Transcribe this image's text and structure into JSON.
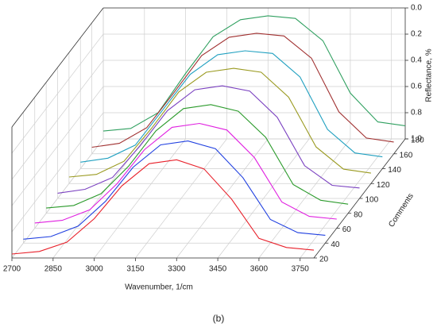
{
  "chart_data": {
    "type": "waterfall",
    "x_label": "Wavenumber, 1/cm",
    "y_label": "Reflectance, %",
    "z_label": "Comments",
    "caption": "(b)",
    "x": [
      2700,
      2800,
      2900,
      3000,
      3100,
      3200,
      3300,
      3400,
      3500,
      3600,
      3700,
      3800
    ],
    "xlim": [
      2700,
      3800
    ],
    "xticks": [
      2700,
      2850,
      3000,
      3150,
      3300,
      3450,
      3600,
      3750
    ],
    "ylim": [
      1.0,
      0.0
    ],
    "yticks": [
      {
        "value": 0,
        "label": "0.0"
      },
      0.2,
      0.4,
      0.6,
      0.8,
      {
        "value": 1,
        "label": "1.0"
      }
    ],
    "zlim": [
      20,
      180
    ],
    "zticks": [
      20,
      40,
      60,
      80,
      100,
      120,
      140,
      160,
      180
    ],
    "grid": true,
    "series": [
      {
        "z": 20,
        "color": "#e8202a",
        "values": [
          0.97,
          0.95,
          0.88,
          0.7,
          0.45,
          0.28,
          0.25,
          0.32,
          0.55,
          0.85,
          0.92,
          0.94
        ]
      },
      {
        "z": 40,
        "color": "#1f3fe0",
        "values": [
          0.97,
          0.95,
          0.87,
          0.68,
          0.42,
          0.25,
          0.22,
          0.28,
          0.5,
          0.82,
          0.92,
          0.94
        ]
      },
      {
        "z": 60,
        "color": "#e020e0",
        "values": [
          0.96,
          0.94,
          0.86,
          0.66,
          0.4,
          0.23,
          0.2,
          0.25,
          0.46,
          0.8,
          0.91,
          0.93
        ]
      },
      {
        "z": 80,
        "color": "#2a9a2a",
        "values": [
          0.96,
          0.94,
          0.85,
          0.64,
          0.37,
          0.2,
          0.17,
          0.22,
          0.42,
          0.78,
          0.9,
          0.93
        ]
      },
      {
        "z": 100,
        "color": "#7a40c0",
        "values": [
          0.96,
          0.93,
          0.84,
          0.6,
          0.33,
          0.17,
          0.14,
          0.18,
          0.38,
          0.75,
          0.9,
          0.92
        ]
      },
      {
        "z": 120,
        "color": "#9a9a20",
        "values": [
          0.95,
          0.93,
          0.83,
          0.58,
          0.3,
          0.15,
          0.12,
          0.15,
          0.34,
          0.72,
          0.89,
          0.92
        ]
      },
      {
        "z": 140,
        "color": "#20a0c0",
        "values": [
          0.95,
          0.92,
          0.82,
          0.55,
          0.28,
          0.13,
          0.1,
          0.12,
          0.3,
          0.7,
          0.88,
          0.91
        ]
      },
      {
        "z": 160,
        "color": "#a03030",
        "values": [
          0.95,
          0.92,
          0.8,
          0.53,
          0.25,
          0.11,
          0.08,
          0.1,
          0.27,
          0.68,
          0.88,
          0.91
        ]
      },
      {
        "z": 180,
        "color": "#30a060",
        "values": [
          0.94,
          0.92,
          0.8,
          0.5,
          0.22,
          0.09,
          0.06,
          0.08,
          0.25,
          0.65,
          0.87,
          0.9
        ]
      }
    ]
  }
}
